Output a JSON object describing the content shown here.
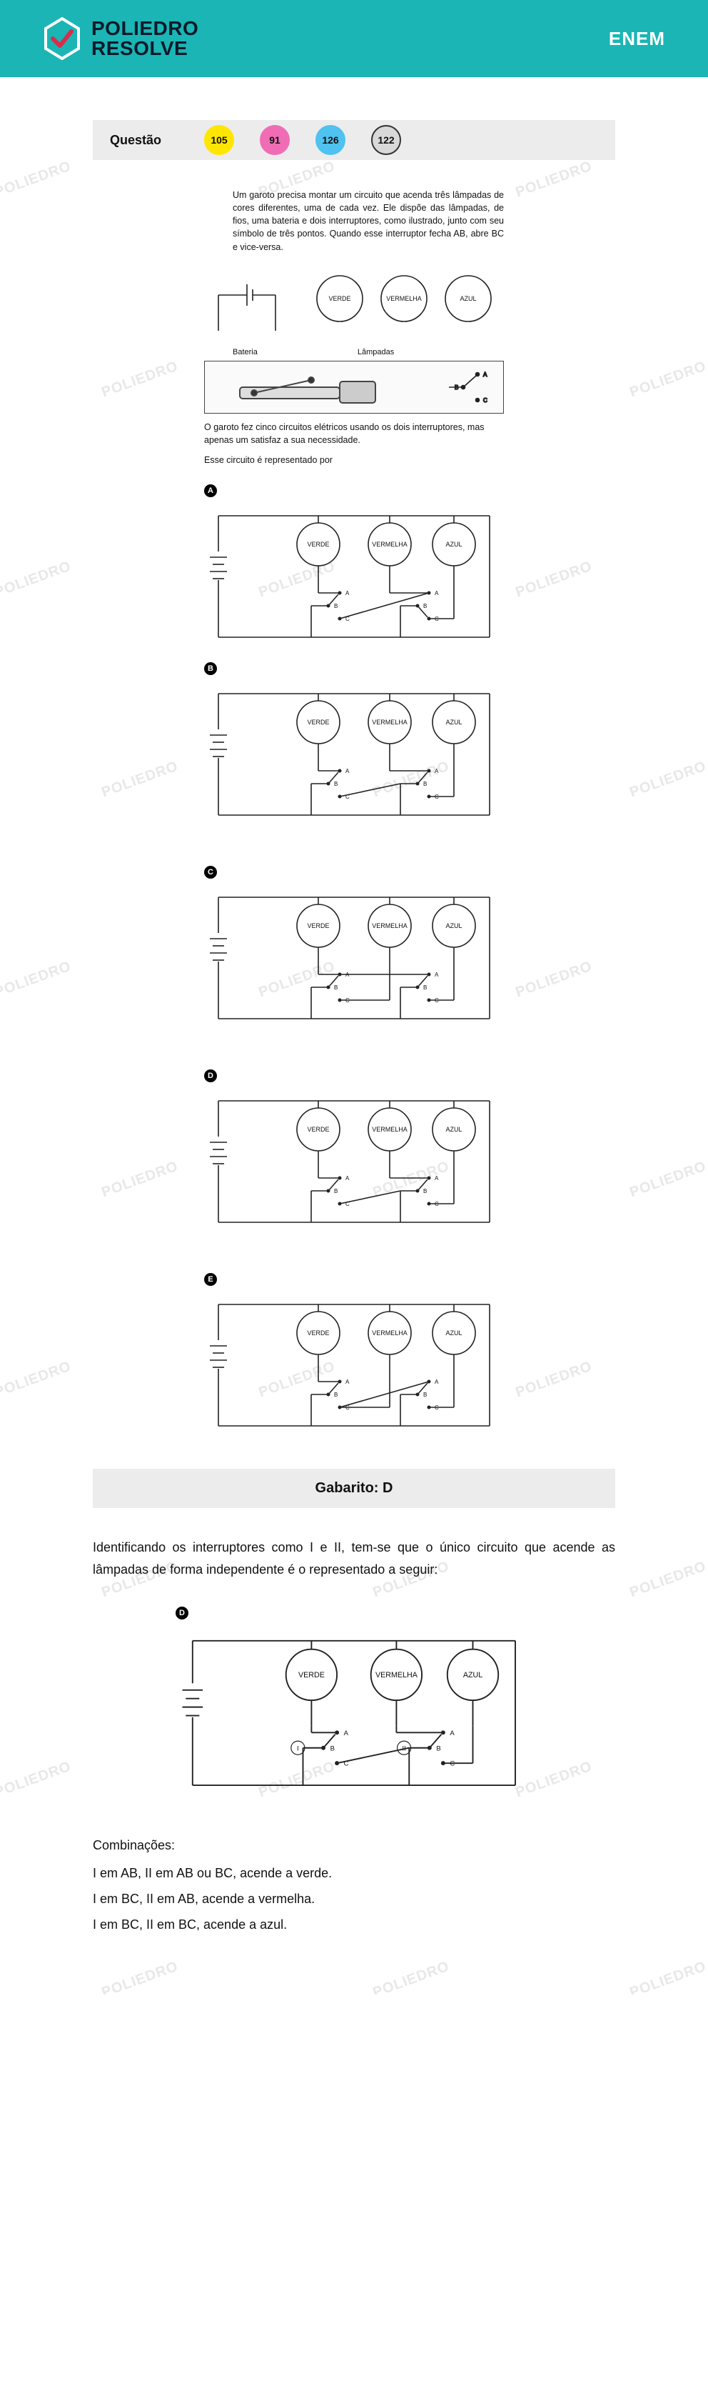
{
  "header": {
    "brand_line1": "POLIEDRO",
    "brand_line2": "RESOLVE",
    "exam": "ENEM",
    "brand_color": "#1bb5b5",
    "check_color": "#d62e4a"
  },
  "question_bar": {
    "label": "Questão",
    "numbers": [
      {
        "value": "105",
        "bg": "#ffe600",
        "border": "#ffe600"
      },
      {
        "value": "91",
        "bg": "#f06db5",
        "border": "#f06db5"
      },
      {
        "value": "126",
        "bg": "#4fc2f0",
        "border": "#4fc2f0"
      },
      {
        "value": "122",
        "bg": "#d9d9d9",
        "border": "#333333"
      }
    ]
  },
  "prompt": {
    "main": "Um garoto precisa montar um circuito que acenda três lâmpadas de cores diferentes, uma de cada vez. Ele dispõe das lâmpadas, de fios, uma bateria e dois interruptores, como ilustrado, junto com seu símbolo de três pontos. Quando esse interruptor fecha AB, abre BC e vice-versa.",
    "lamps": [
      "VERDE",
      "VERMELHA",
      "AZUL"
    ],
    "battery_label": "Bateria",
    "lamps_label": "Lâmpadas",
    "after_photo": "O garoto fez cinco circuitos elétricos usando os dois interruptores, mas apenas um satisfaz a sua necessidade.",
    "after_photo2": "Esse circuito é representado por"
  },
  "options": [
    "A",
    "B",
    "C",
    "D",
    "E"
  ],
  "gabarito": "Gabarito: D",
  "explanation": "Identificando os interruptores como I e II, tem-se que o único circuito que acende as lâmpadas de forma independente é o representado a seguir:",
  "answer_option": "D",
  "combinations": {
    "heading": "Combinações:",
    "lines": [
      "I em AB, II em AB ou BC, acende a verde.",
      "I em BC, II em AB, acende a vermelha.",
      "I em BC, II em BC, acende a azul."
    ]
  },
  "circuit_style": {
    "stroke": "#222222",
    "stroke_width": 1.6,
    "lamp_radius": 30,
    "lamp_font": 9,
    "abc_font": 8
  },
  "watermark_text": "POLIEDRO"
}
